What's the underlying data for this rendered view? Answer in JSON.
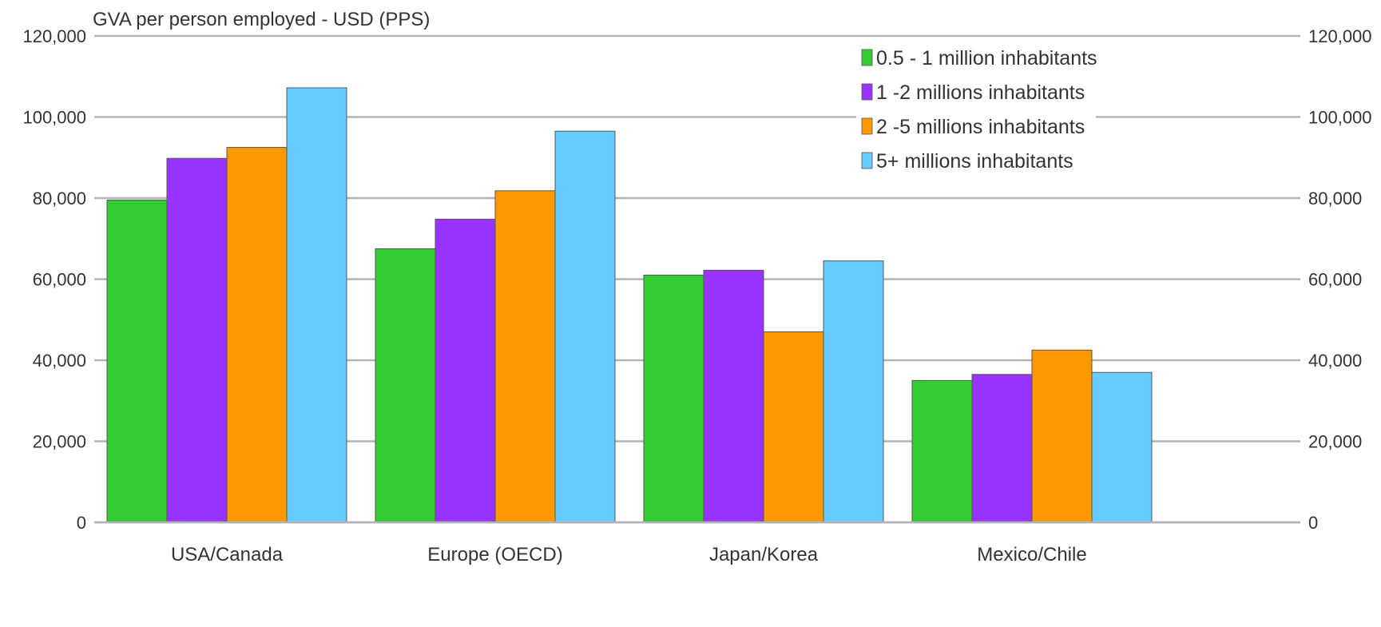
{
  "chart_data": {
    "type": "bar",
    "title": "GVA per person employed - USD (PPS)",
    "xlabel": "",
    "ylabel": "",
    "ylim": [
      0,
      120000
    ],
    "yticks": [
      "0",
      "20,000",
      "40,000",
      "60,000",
      "80,000",
      "100,000",
      "120,000"
    ],
    "secondary_axis": true,
    "grid": true,
    "legend_position": "top-right",
    "categories": [
      "USA/Canada",
      "Europe (OECD)",
      "Japan/Korea",
      "Mexico/Chile"
    ],
    "series": [
      {
        "name": "0.5 - 1 million inhabitants",
        "color": "#33CC33",
        "values": [
          79500,
          67500,
          61000,
          35000
        ]
      },
      {
        "name": "1 -2 millions inhabitants",
        "color": "#9933FF",
        "values": [
          89800,
          74800,
          62200,
          36500
        ]
      },
      {
        "name": "2 -5 millions inhabitants",
        "color": "#FF9900",
        "values": [
          92500,
          81800,
          47000,
          42500
        ]
      },
      {
        "name": "5+ millions inhabitants",
        "color": "#66CCFF",
        "values": [
          107200,
          96500,
          64500,
          37000
        ]
      }
    ]
  }
}
